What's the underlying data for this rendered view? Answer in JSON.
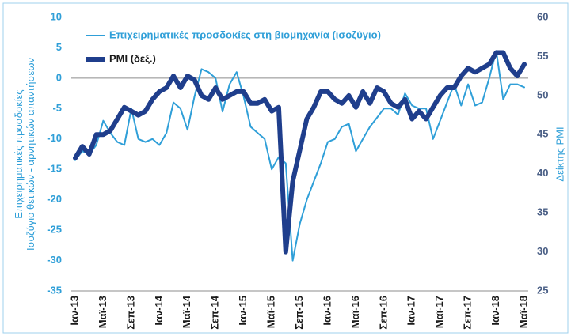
{
  "chart_data": {
    "type": "line",
    "y_label": [
      "Επιχειρηματικές προσδοκίες",
      "Ισοζύγιο θετικών - αρνητικών απαντήσεων"
    ],
    "y2_label": "Δείκτης PMI",
    "categories": [
      "Ιαν-13",
      null,
      null,
      null,
      "Μαϊ-13",
      null,
      null,
      null,
      "Σεπ-13",
      null,
      null,
      null,
      "Ιαν-14",
      null,
      null,
      null,
      "Μαϊ-14",
      null,
      null,
      null,
      "Σεπ-14",
      null,
      null,
      null,
      "Ιαν-15",
      null,
      null,
      null,
      "Μαϊ-15",
      null,
      null,
      null,
      "Σεπ-15",
      null,
      null,
      null,
      "Ιαν-16",
      null,
      null,
      null,
      "Μαϊ-16",
      null,
      null,
      null,
      "Σεπ-16",
      null,
      null,
      null,
      "Ιαν-17",
      null,
      null,
      null,
      "Μαϊ-17",
      null,
      null,
      null,
      "Σεπ-17",
      null,
      null,
      null,
      "Ιαν-18",
      null,
      null,
      null,
      "Μαϊ-18"
    ],
    "series": [
      {
        "name": "Επιχειρηματικές προσδοκίες στη βιομηχανία (ισοζύγιο)",
        "color": "#2f9fd8",
        "width": 2,
        "values": [
          -13.5,
          -12,
          -12.5,
          -11,
          -7,
          -9,
          -10.5,
          -11,
          -5,
          -10,
          -10.5,
          -10,
          -11,
          -9,
          -4,
          -5,
          -8.5,
          -3,
          1.5,
          1,
          0,
          -5.5,
          -1,
          1,
          -3,
          -8,
          -9,
          -10,
          -15,
          -13,
          -14,
          -30,
          -24,
          -20,
          -17,
          -14,
          -10.5,
          -10,
          -8,
          -7.5,
          -12,
          -10,
          -8,
          -6.5,
          -5,
          -5,
          -6,
          -2.5,
          -4.5,
          -5,
          -5,
          -10,
          -7,
          -4,
          -1,
          -4.5,
          -1,
          -4.5,
          -4,
          0,
          4.5,
          -3.5,
          -1,
          -1,
          -1.5
        ]
      },
      {
        "name": "PMI (δεξ.)",
        "color": "#1f3e8c",
        "width": 6,
        "axis": "y2",
        "values": [
          42,
          43.5,
          42.5,
          45,
          45,
          45.5,
          47,
          48.5,
          48,
          47.5,
          48,
          49.5,
          50.5,
          51,
          52.5,
          51,
          52.5,
          52,
          50,
          49.5,
          51,
          49.5,
          50,
          50.5,
          50.5,
          49,
          49,
          49.5,
          48,
          48.5,
          30,
          39,
          43,
          47,
          48.5,
          50.5,
          50.5,
          49.5,
          49,
          50,
          48.5,
          50.5,
          49,
          51,
          50.5,
          49,
          48.5,
          49.5,
          47,
          48,
          47,
          48.5,
          50,
          51,
          51,
          52.5,
          53.5,
          53,
          53.5,
          54,
          55.5,
          55.5,
          53.5,
          52.5,
          54
        ]
      }
    ],
    "ylim": [
      -35,
      10
    ],
    "yticks": [
      -35,
      -30,
      -25,
      -20,
      -15,
      -10,
      -5,
      0,
      5,
      10
    ],
    "y2lim": [
      25,
      60
    ],
    "y2ticks": [
      25,
      30,
      35,
      40,
      45,
      50,
      55,
      60
    ],
    "zero_line": true,
    "legend": "top-left"
  }
}
